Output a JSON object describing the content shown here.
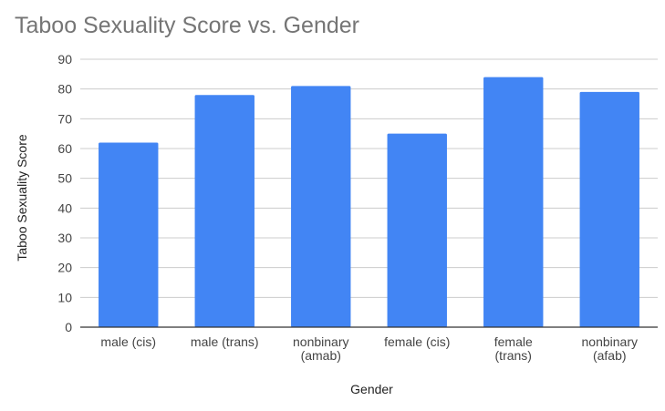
{
  "chart_data": {
    "type": "bar",
    "title": "Taboo Sexuality Score vs. Gender",
    "xlabel": "Gender",
    "ylabel": "Taboo Sexuality Score",
    "categories": [
      [
        "male (cis)"
      ],
      [
        "male (trans)"
      ],
      [
        "nonbinary",
        "(amab)"
      ],
      [
        "female (cis)"
      ],
      [
        "female",
        "(trans)"
      ],
      [
        "nonbinary",
        "(afab)"
      ]
    ],
    "values": [
      62,
      78,
      81,
      65,
      84,
      79
    ],
    "ylim": [
      0,
      90
    ],
    "yticks": [
      0,
      10,
      20,
      30,
      40,
      50,
      60,
      70,
      80,
      90
    ],
    "grid": true,
    "legend": "none",
    "colors": {
      "bar": "#4285f4",
      "grid": "#cccccc",
      "axis": "#333333",
      "title": "#757575"
    }
  }
}
